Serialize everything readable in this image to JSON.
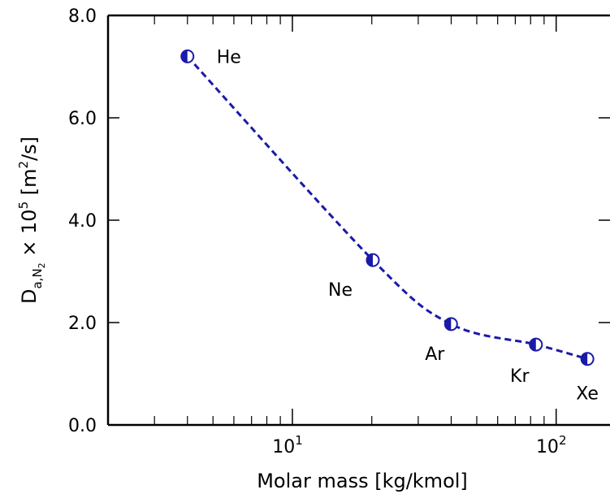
{
  "chart_data": {
    "type": "scatter",
    "xscale": "log",
    "xlim": [
      2,
      160
    ],
    "ylim": [
      0,
      8
    ],
    "xlabel": "Molar mass [kg/kmol]",
    "ylabel_main": "D",
    "ylabel_sub": "a,N",
    "ylabel_subsub": "2",
    "ylabel_mid": " × 10",
    "ylabel_sup": "5",
    "ylabel_unit_pre": " [m",
    "ylabel_unit_sup": "2",
    "ylabel_unit_post": "/s]",
    "y_ticks": [
      {
        "value": 0,
        "label": "0.0"
      },
      {
        "value": 2,
        "label": "2.0"
      },
      {
        "value": 4,
        "label": "4.0"
      },
      {
        "value": 6,
        "label": "6.0"
      },
      {
        "value": 8,
        "label": "8.0"
      }
    ],
    "x_major_ticks": [
      {
        "value": 10,
        "base": "10",
        "exp": "1"
      },
      {
        "value": 100,
        "base": "10",
        "exp": "2"
      }
    ],
    "x_minor_ticks": [
      2,
      3,
      4,
      5,
      6,
      7,
      8,
      9,
      20,
      30,
      40,
      50,
      60,
      70,
      80,
      90
    ],
    "points": [
      {
        "label": "He",
        "x": 4.0,
        "y": 7.2
      },
      {
        "label": "Ne",
        "x": 20.18,
        "y": 3.22
      },
      {
        "label": "Ar",
        "x": 39.95,
        "y": 1.97
      },
      {
        "label": "Kr",
        "x": 83.8,
        "y": 1.57
      },
      {
        "label": "Xe",
        "x": 131.3,
        "y": 1.29
      }
    ],
    "marker_color": "#1a1aa8",
    "line_color": "#1a1aa8",
    "line_style": "dashed"
  }
}
